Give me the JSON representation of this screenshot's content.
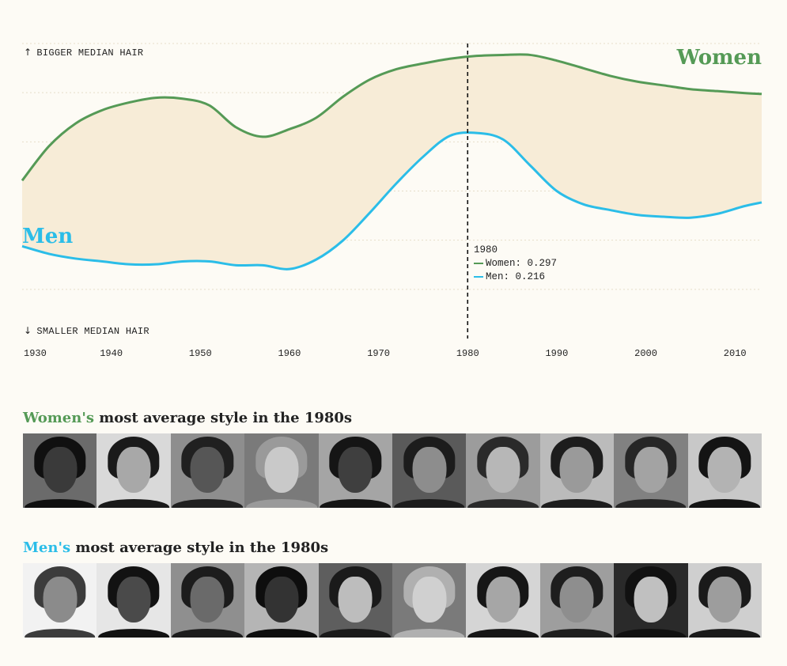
{
  "chart_data": {
    "type": "area",
    "x": [
      1930,
      1933,
      1936,
      1939,
      1942,
      1945,
      1948,
      1951,
      1954,
      1957,
      1960,
      1963,
      1966,
      1969,
      1972,
      1975,
      1978,
      1981,
      1984,
      1987,
      1990,
      1993,
      1996,
      1999,
      2002,
      2005,
      2008,
      2011,
      2013
    ],
    "series": [
      {
        "name": "Women",
        "color": "#559a56",
        "values": [
          0.166,
          0.202,
          0.226,
          0.24,
          0.248,
          0.253,
          0.252,
          0.245,
          0.222,
          0.212,
          0.22,
          0.232,
          0.254,
          0.272,
          0.283,
          0.289,
          0.294,
          0.297,
          0.298,
          0.298,
          0.292,
          0.284,
          0.276,
          0.27,
          0.266,
          0.262,
          0.26,
          0.258,
          0.257
        ]
      },
      {
        "name": "Men",
        "color": "#2bbde8",
        "values": [
          0.097,
          0.089,
          0.084,
          0.081,
          0.078,
          0.078,
          0.081,
          0.081,
          0.077,
          0.077,
          0.073,
          0.083,
          0.103,
          0.132,
          0.163,
          0.191,
          0.213,
          0.216,
          0.209,
          0.182,
          0.155,
          0.141,
          0.135,
          0.13,
          0.128,
          0.127,
          0.131,
          0.139,
          0.143
        ]
      }
    ],
    "xlim": [
      1930,
      2013
    ],
    "ylim": [
      0.0,
      0.31
    ],
    "x_ticks": [
      "1930",
      "1940",
      "1950",
      "1960",
      "1970",
      "1980",
      "1990",
      "2000",
      "2010"
    ],
    "highlight_x": 1980,
    "grid": true,
    "fill_between": "#f7ecd7"
  },
  "labels": {
    "top_note": "BIGGER MEDIAN HAIR",
    "bottom_note": "SMALLER MEDIAN HAIR",
    "women": "Women",
    "men": "Men"
  },
  "tooltip": {
    "year": "1980",
    "women": "Women: 0.297",
    "men": "Men: 0.216"
  },
  "sections": {
    "women_key": "Women's",
    "women_rest": " most average style in the 1980s",
    "men_key": "Men's",
    "men_rest": " most average style in the 1980s"
  },
  "colors": {
    "women": "#559a56",
    "men": "#2bbde8",
    "fill": "#f7ecd7",
    "background": "#fdfbf5"
  },
  "photos": {
    "women": [
      {
        "bg": "#6b6b6b",
        "hair": "#101010",
        "skin": "#3a3a3a"
      },
      {
        "bg": "#d9d9d9",
        "hair": "#1a1a1a",
        "skin": "#a8a8a8"
      },
      {
        "bg": "#8e8e8e",
        "hair": "#202020",
        "skin": "#565656"
      },
      {
        "bg": "#7a7a7a",
        "hair": "#9a9a9a",
        "skin": "#c9c9c9"
      },
      {
        "bg": "#a5a5a5",
        "hair": "#151515",
        "skin": "#3f3f3f"
      },
      {
        "bg": "#5a5a5a",
        "hair": "#1c1c1c",
        "skin": "#8d8d8d"
      },
      {
        "bg": "#9c9c9c",
        "hair": "#2a2a2a",
        "skin": "#b7b7b7"
      },
      {
        "bg": "#bbbbbb",
        "hair": "#1d1d1d",
        "skin": "#9a9a9a"
      },
      {
        "bg": "#818181",
        "hair": "#262626",
        "skin": "#a3a3a3"
      },
      {
        "bg": "#c8c8c8",
        "hair": "#141414",
        "skin": "#b3b3b3"
      }
    ],
    "men": [
      {
        "bg": "#f2f2f2",
        "hair": "#3c3c3c",
        "skin": "#8b8b8b"
      },
      {
        "bg": "#e6e6e6",
        "hair": "#121212",
        "skin": "#4a4a4a"
      },
      {
        "bg": "#8f8f8f",
        "hair": "#1c1c1c",
        "skin": "#6a6a6a"
      },
      {
        "bg": "#b5b5b5",
        "hair": "#0e0e0e",
        "skin": "#333333"
      },
      {
        "bg": "#5e5e5e",
        "hair": "#1a1a1a",
        "skin": "#bdbdbd"
      },
      {
        "bg": "#7a7a7a",
        "hair": "#b0b0b0",
        "skin": "#d0d0d0"
      },
      {
        "bg": "#d5d5d5",
        "hair": "#161616",
        "skin": "#a6a6a6"
      },
      {
        "bg": "#9e9e9e",
        "hair": "#1e1e1e",
        "skin": "#8e8e8e"
      },
      {
        "bg": "#2a2a2a",
        "hair": "#111111",
        "skin": "#c0c0c0"
      },
      {
        "bg": "#cfcfcf",
        "hair": "#1a1a1a",
        "skin": "#9d9d9d"
      }
    ]
  }
}
